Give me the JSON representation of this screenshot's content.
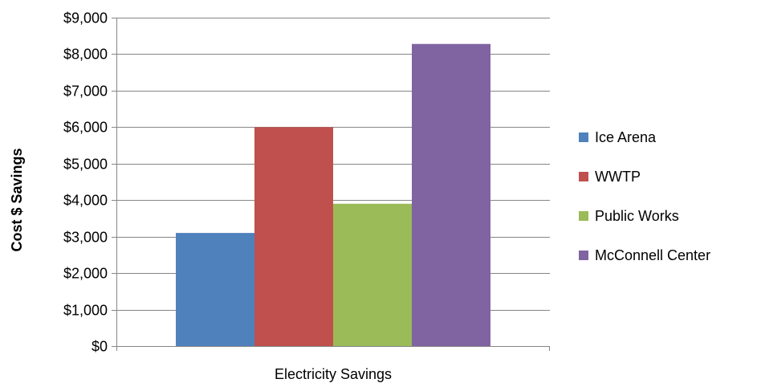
{
  "chart_data": {
    "type": "bar",
    "title": "",
    "xlabel": "Electricity Savings",
    "ylabel": "Cost $ Savings",
    "categories": [
      "Electricity Savings"
    ],
    "ylim": [
      0,
      9000
    ],
    "yticks": [
      0,
      1000,
      2000,
      3000,
      4000,
      5000,
      6000,
      7000,
      8000,
      9000
    ],
    "ytick_labels": [
      "$0",
      "$1,000",
      "$2,000",
      "$3,000",
      "$4,000",
      "$5,000",
      "$6,000",
      "$7,000",
      "$8,000",
      "$9,000"
    ],
    "grid": true,
    "legend_position": "right",
    "series": [
      {
        "name": "Ice Arena",
        "values": [
          3100
        ],
        "color": "#4F81BD"
      },
      {
        "name": "WWTP",
        "values": [
          6000
        ],
        "color": "#C0504D"
      },
      {
        "name": "Public Works",
        "values": [
          3900
        ],
        "color": "#9BBB59"
      },
      {
        "name": "McConnell Center",
        "values": [
          8280
        ],
        "color": "#8064A2"
      }
    ]
  }
}
